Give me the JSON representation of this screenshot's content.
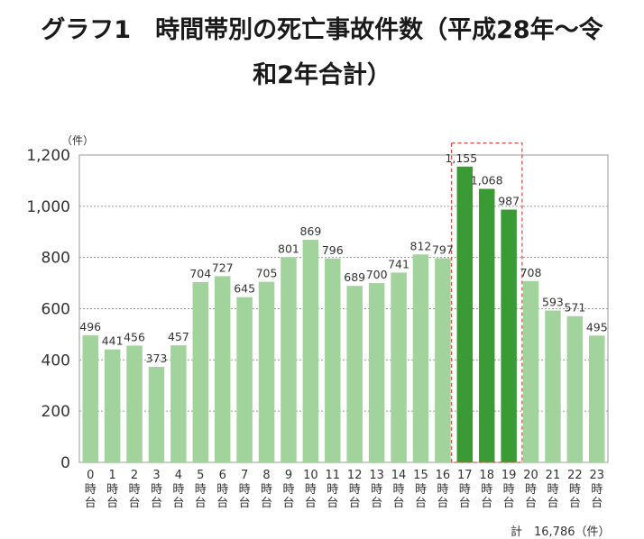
{
  "page": {
    "title_line1": "グラフ1　時間帯別の死亡事故件数（平成28年〜令",
    "title_line2": "和2年合計）"
  },
  "chart_data": {
    "type": "bar",
    "title": "グラフ1　時間帯別の死亡事故件数（平成28年〜令和2年合計）",
    "ylabel": "（件）",
    "xlabel": "",
    "ylim": [
      0,
      1200
    ],
    "yticks": [
      "0",
      "200",
      "400",
      "600",
      "800",
      "1,000",
      "1,200"
    ],
    "categories": [
      "0時台",
      "1時台",
      "2時台",
      "3時台",
      "4時台",
      "5時台",
      "6時台",
      "7時台",
      "8時台",
      "9時台",
      "10時台",
      "11時台",
      "12時台",
      "13時台",
      "14時台",
      "15時台",
      "16時台",
      "17時台",
      "18時台",
      "19時台",
      "20時台",
      "21時台",
      "22時台",
      "23時台"
    ],
    "category_numbers": [
      "0",
      "1",
      "2",
      "3",
      "4",
      "5",
      "6",
      "7",
      "8",
      "9",
      "10",
      "11",
      "12",
      "13",
      "14",
      "15",
      "16",
      "17",
      "18",
      "19",
      "20",
      "21",
      "22",
      "23"
    ],
    "category_suffix": [
      "時",
      "台"
    ],
    "values": [
      496,
      441,
      456,
      373,
      457,
      704,
      727,
      645,
      705,
      801,
      869,
      796,
      689,
      700,
      741,
      812,
      797,
      1155,
      1068,
      987,
      708,
      593,
      571,
      495
    ],
    "value_labels": [
      "496",
      "441",
      "456",
      "373",
      "457",
      "704",
      "727",
      "645",
      "705",
      "801",
      "869",
      "796",
      "689",
      "700",
      "741",
      "812",
      "797",
      "1,155",
      "1,068",
      "987",
      "708",
      "593",
      "571",
      "495"
    ],
    "highlight_indices": [
      17,
      18,
      19
    ],
    "grid": true,
    "total_note": "計　16,786（件）",
    "colors": {
      "bar": "#a3d39c",
      "bar_highlight": "#3a9b35",
      "highlight_border": "#d9534f",
      "grid": "#9a9a9a"
    }
  }
}
